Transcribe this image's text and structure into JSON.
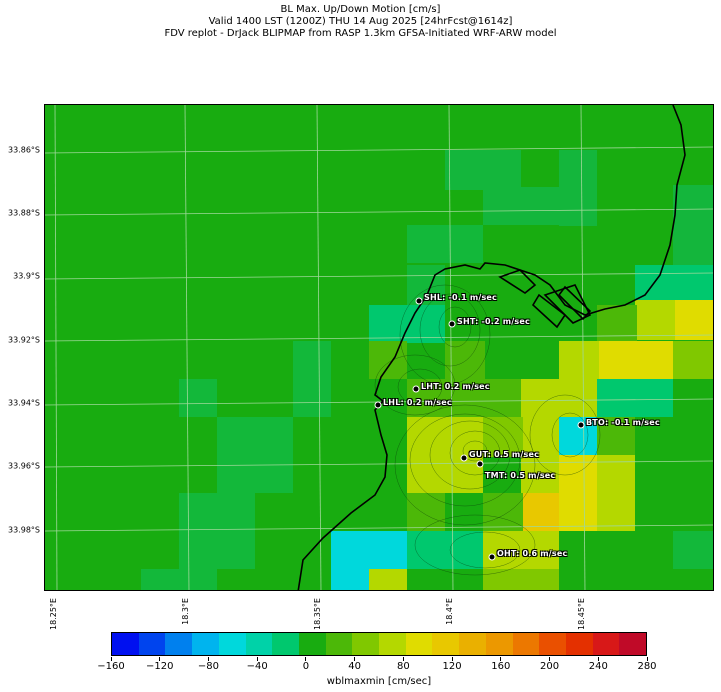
{
  "header": {
    "title_line1": "BL Max. Up/Down Motion [cm/s]",
    "title_line2": "Valid 1400 LST (1200Z) THU 14 Aug 2025 [24hrFcst@1614z]",
    "title_line3": "FDV replot - DrJack BLIPMAP from RASP 1.3km GFSA-Initiated WRF-ARW model"
  },
  "map": {
    "lat_labels": [
      "33.86°S",
      "33.88°S",
      "33.9°S",
      "33.92°S",
      "33.94°S",
      "33.96°S",
      "33.98°S"
    ],
    "lon_labels": [
      "18.25°E",
      "18.3°E",
      "18.35°E",
      "18.4°E",
      "18.45°E"
    ],
    "stations": [
      {
        "code": "SHL",
        "label": "SHL: -0.1 m/sec"
      },
      {
        "code": "SHT",
        "label": "SHT: -0.2 m/sec"
      },
      {
        "code": "LHT",
        "label": "LHT: 0.2 m/sec"
      },
      {
        "code": "LHL",
        "label": "LHL: 0.2 m/sec"
      },
      {
        "code": "BTO",
        "label": "BTO: -0.1 m/sec"
      },
      {
        "code": "GUT",
        "label": "GUT: 0.5 m/sec"
      },
      {
        "code": "TMT",
        "label": "TMT: 0.5 m/sec"
      },
      {
        "code": "OHT",
        "label": "OHT: 0.6 m/sec"
      }
    ]
  },
  "colorbar": {
    "label": "wblmaxmin [cm/sec]",
    "tick_labels": [
      "−160",
      "−120",
      "−80",
      "−40",
      "0",
      "40",
      "80",
      "120",
      "160",
      "200",
      "240",
      "280"
    ],
    "colors": [
      "#0010f0",
      "#0044ee",
      "#0080ee",
      "#00b4ee",
      "#00d8dc",
      "#00d2a8",
      "#00c86e",
      "#18ac10",
      "#4cb808",
      "#80c800",
      "#b4d800",
      "#e0dc00",
      "#e8c800",
      "#eab000",
      "#ec9800",
      "#ec7800",
      "#ea5000",
      "#e43000",
      "#d81818",
      "#c00a28"
    ]
  }
}
